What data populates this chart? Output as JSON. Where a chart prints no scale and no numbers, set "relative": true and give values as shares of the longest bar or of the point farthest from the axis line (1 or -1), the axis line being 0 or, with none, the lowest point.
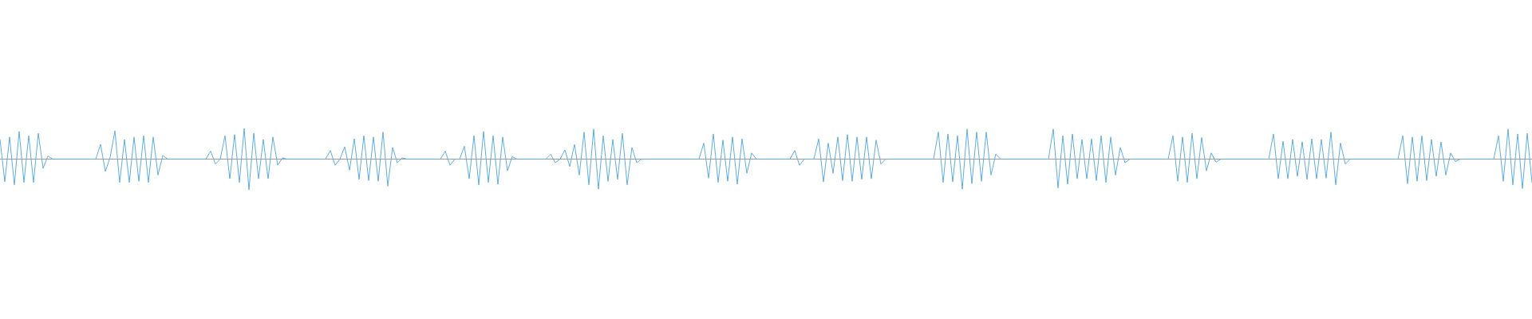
{
  "chart_data": {
    "type": "line",
    "relative": true,
    "tick_labels": false,
    "color": "#5dade2",
    "categories": [
      null,
      null,
      null,
      null,
      null,
      null,
      null,
      null,
      null,
      null,
      null,
      null,
      null,
      null,
      null,
      null,
      null,
      null,
      null,
      null,
      null,
      null,
      null,
      null,
      null,
      null,
      null,
      null,
      null,
      null,
      null,
      null,
      null,
      null,
      null,
      null,
      null,
      null,
      null,
      null,
      null,
      null,
      null,
      null,
      null,
      null,
      null,
      null,
      null,
      null,
      null,
      null,
      null,
      null,
      null,
      null,
      null,
      null,
      null,
      null,
      null,
      null,
      null,
      null,
      null,
      null,
      null,
      null,
      null,
      null,
      null,
      null,
      null,
      null,
      null,
      null,
      null,
      null,
      null,
      null,
      null,
      null,
      null,
      null,
      null,
      null,
      null,
      null,
      null,
      null,
      null,
      null,
      null,
      null,
      null,
      null,
      null,
      null,
      null,
      null,
      null,
      null,
      null,
      null,
      null,
      null,
      null,
      null,
      null,
      null,
      null,
      null,
      null,
      null,
      null,
      null,
      null,
      null,
      null,
      null,
      null,
      null,
      null,
      null,
      null,
      null,
      null,
      null,
      null,
      null,
      null,
      null,
      null,
      null,
      null,
      null,
      null,
      null,
      null,
      null,
      null,
      null,
      null,
      null,
      null,
      null,
      null,
      null,
      null,
      null,
      null,
      null,
      null,
      null,
      null,
      null,
      null,
      null,
      null,
      null,
      null,
      null,
      null,
      null,
      null,
      null,
      null,
      null,
      null,
      null,
      null,
      null,
      null,
      null,
      null,
      null,
      null,
      null,
      null,
      null,
      null,
      null,
      null,
      null,
      null,
      null,
      null,
      null,
      null,
      null,
      null,
      null,
      null,
      null,
      null,
      null,
      null,
      null,
      null,
      null,
      null,
      null,
      null,
      null,
      null,
      null,
      null,
      null,
      null,
      null,
      null,
      null,
      null,
      null,
      null,
      null,
      null,
      null,
      null,
      null,
      null,
      null,
      null,
      null,
      null,
      null,
      null,
      null,
      null,
      null,
      null,
      null,
      null,
      null,
      null,
      null,
      null,
      null,
      null,
      null,
      null,
      null,
      null,
      null,
      null,
      null,
      null,
      null,
      null,
      null,
      null,
      null,
      null,
      null,
      null,
      null,
      null,
      null,
      null,
      null,
      null,
      null,
      null,
      null,
      null,
      null,
      null,
      null,
      null,
      null,
      null,
      null,
      null,
      null,
      null,
      null,
      null,
      null,
      null,
      null,
      null,
      null,
      null,
      null,
      null,
      null,
      null,
      null,
      null,
      null,
      null,
      null,
      null,
      null,
      null,
      null,
      null,
      null,
      null,
      null,
      null,
      null,
      null,
      null,
      null,
      null,
      null,
      null,
      null,
      null,
      null,
      null,
      null,
      null,
      null,
      null,
      null,
      null,
      null,
      null,
      null
    ],
    "values": [
      0.64,
      -0.74,
      0.72,
      -0.84,
      0.9,
      -0.76,
      0.76,
      -0.76,
      0.84,
      -0.3,
      0.1,
      0,
      0,
      0,
      0,
      0,
      0,
      0,
      0,
      0,
      0,
      0.48,
      -0.4,
      0.06,
      0.92,
      -0.76,
      0.64,
      -0.76,
      0.72,
      -0.72,
      0.76,
      -0.76,
      0.72,
      -0.52,
      0.12,
      0,
      0,
      0,
      0,
      0,
      0,
      0,
      0,
      0,
      0.26,
      -0.16,
      0,
      0.76,
      -0.64,
      0.8,
      -0.76,
      1,
      -1,
      0.84,
      -0.64,
      0.64,
      -0.64,
      0.72,
      -0.2,
      0.04,
      0,
      0,
      0,
      0,
      0,
      0,
      0,
      0,
      0,
      0.28,
      -0.2,
      0,
      0.4,
      -0.36,
      0.66,
      -0.66,
      0.76,
      -0.7,
      0.72,
      -0.72,
      0.88,
      -0.88,
      0.38,
      -0.12,
      0.04,
      0,
      0,
      0,
      0,
      0,
      0,
      0,
      0,
      0.26,
      -0.2,
      0,
      0,
      0.42,
      -0.64,
      0.76,
      -0.84,
      0.9,
      -0.76,
      0.76,
      -0.82,
      0.72,
      -0.38,
      0.08,
      0,
      0,
      0,
      0,
      0,
      0,
      0,
      0.16,
      -0.12,
      0,
      0.3,
      -0.24,
      0.48,
      -0.52,
      0.88,
      -0.84,
      0.98,
      -0.98,
      0.76,
      -0.72,
      0.64,
      -0.66,
      0.84,
      -0.84,
      0.38,
      -0.12,
      0,
      0,
      0,
      0,
      0,
      0,
      0,
      0,
      0,
      0,
      0,
      0,
      0,
      0.52,
      -0.62,
      0.82,
      -0.76,
      0.62,
      -0.72,
      0.72,
      -0.82,
      0.66,
      -0.46,
      0.2,
      0,
      0,
      0,
      0,
      0,
      0,
      0,
      0,
      0.28,
      -0.2,
      0,
      0,
      0,
      0.66,
      -0.74,
      0.52,
      -0.46,
      0.72,
      -0.7,
      0.8,
      -0.72,
      0.72,
      -0.66,
      0.72,
      -0.64,
      0.62,
      -0.16,
      0,
      0,
      0,
      0,
      0,
      0,
      0,
      0,
      0,
      0,
      0,
      0.88,
      -0.76,
      0.82,
      -0.74,
      0.76,
      -0.98,
      0.98,
      -0.8,
      0.88,
      -0.72,
      0.88,
      -0.52,
      0.16,
      0,
      0,
      0,
      0,
      0,
      0,
      0,
      0,
      0,
      0,
      0,
      0.98,
      -0.94,
      0.76,
      -0.82,
      0.82,
      -0.64,
      0.64,
      -0.64,
      0.66,
      -0.7,
      0.76,
      -0.76,
      0.72,
      -0.52,
      0.38,
      -0.12,
      0,
      0,
      0,
      0,
      0,
      0,
      0,
      0,
      0,
      0.76,
      -0.72,
      0.72,
      -0.76,
      0.84,
      -0.64,
      0.7,
      -0.38,
      0.2,
      -0.1,
      0,
      0,
      0,
      0,
      0,
      0,
      0,
      0,
      0,
      0,
      0,
      0.82,
      -0.64,
      0.58,
      -0.64,
      0.64,
      -0.56,
      0.56,
      -0.66,
      0.66,
      -0.64,
      0.64,
      -0.62,
      0.88,
      -0.84,
      0.52,
      -0.16,
      0,
      0,
      0,
      0,
      0,
      0,
      0,
      0,
      0,
      0,
      0,
      0.76,
      -0.8,
      0.72,
      -0.72,
      0.76,
      -0.7,
      0.64,
      -0.56,
      0.56,
      -0.52,
      0.2,
      -0.08,
      0,
      0,
      0,
      0,
      0,
      0,
      0,
      0,
      0.76,
      -0.72,
      0.98,
      -0.84,
      0.82,
      -0.96,
      0.84,
      -0.76
    ]
  }
}
